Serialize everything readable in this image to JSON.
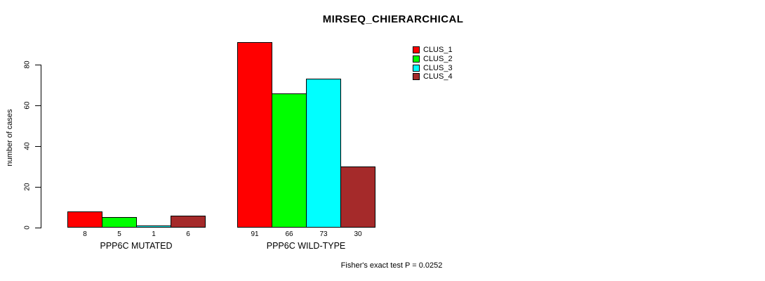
{
  "title": "MIRSEQ_CHIERARCHICAL",
  "ylabel": "number of cases",
  "chart_data": {
    "type": "bar",
    "title": "MIRSEQ_CHIERARCHICAL",
    "xlabel": "",
    "ylabel": "number of cases",
    "groups": [
      "PPP6C MUTATED",
      "PPP6C WILD-TYPE"
    ],
    "series": [
      {
        "name": "CLUS_1",
        "color": "#ff0000",
        "values": [
          8,
          91
        ]
      },
      {
        "name": "CLUS_2",
        "color": "#00ff00",
        "values": [
          5,
          66
        ]
      },
      {
        "name": "CLUS_3",
        "color": "#00ffff",
        "values": [
          1,
          73
        ]
      },
      {
        "name": "CLUS_4",
        "color": "#a52a2a",
        "values": [
          6,
          30
        ]
      }
    ],
    "bar_value_labels": true,
    "yticks": [
      0,
      20,
      40,
      60,
      80
    ],
    "ylim": [
      0,
      92
    ],
    "grid": false,
    "legend_position": "top-right",
    "legend_entries": [
      "CLUS_1",
      "CLUS_2",
      "CLUS_3",
      "CLUS_4"
    ],
    "annotation": "Fisher's exact test P = 0.0252"
  }
}
